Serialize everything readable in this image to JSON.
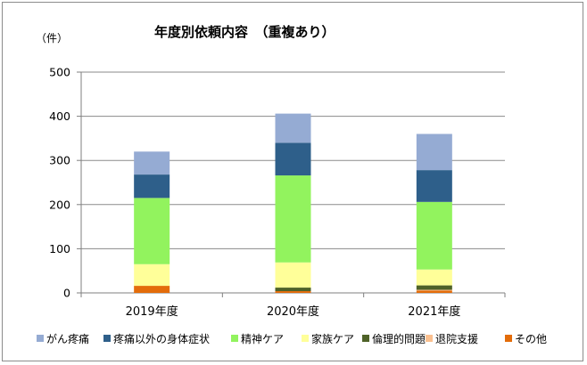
{
  "chart_data": {
    "type": "bar",
    "stacked": true,
    "title": "年度別依頼内容　（重複あり）",
    "ylabel": "（件）",
    "xlabel": "",
    "ylim": [
      0,
      500
    ],
    "yticks": [
      0,
      100,
      200,
      300,
      400,
      500
    ],
    "grid": true,
    "legend_position": "bottom",
    "categories": [
      "2019年度",
      "2020年度",
      "2021年度"
    ],
    "series": [
      {
        "name": "その他",
        "color": "#e36c0a",
        "values": [
          16,
          4,
          5
        ]
      },
      {
        "name": "退院支援",
        "color": "#fac090",
        "values": [
          0,
          0,
          2
        ]
      },
      {
        "name": "倫理的問題",
        "color": "#4f6228",
        "values": [
          0,
          8,
          10
        ]
      },
      {
        "name": "家族ケア",
        "color": "#ffff99",
        "values": [
          49,
          57,
          36
        ]
      },
      {
        "name": "精神ケア",
        "color": "#92f35e",
        "values": [
          150,
          197,
          153
        ]
      },
      {
        "name": "疼痛以外の身体症状",
        "color": "#2e5f8a",
        "values": [
          53,
          74,
          72
        ]
      },
      {
        "name": "がん疼痛",
        "color": "#95abd3",
        "values": [
          52,
          66,
          82
        ]
      }
    ],
    "legend_order": [
      "がん疼痛",
      "疼痛以外の身体症状",
      "精神ケア",
      "家族ケア",
      "倫理的問題",
      "退院支援",
      "その他"
    ]
  }
}
